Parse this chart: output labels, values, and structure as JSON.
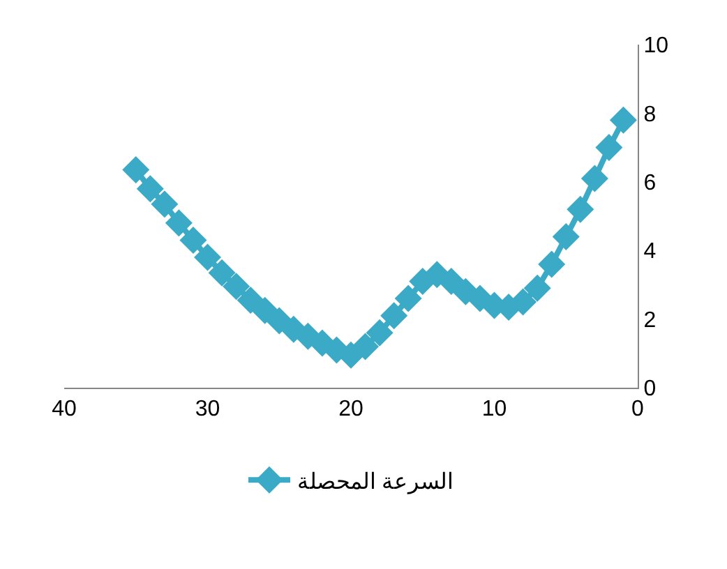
{
  "chart_data": {
    "type": "line",
    "x": [
      35,
      34,
      33,
      32,
      31,
      30,
      29,
      28,
      27,
      26,
      25,
      24,
      23,
      22,
      21,
      20,
      19,
      18,
      17,
      16,
      15,
      14,
      13,
      12,
      11,
      10,
      9,
      8,
      7,
      6,
      5,
      4,
      3,
      2,
      1
    ],
    "series": [
      {
        "name": "السرعة المحصلة",
        "color": "#3aaac6",
        "values": [
          6.35,
          5.8,
          5.35,
          4.8,
          4.3,
          3.8,
          3.35,
          2.95,
          2.55,
          2.25,
          1.95,
          1.7,
          1.5,
          1.3,
          1.1,
          0.95,
          1.2,
          1.6,
          2.1,
          2.6,
          3.1,
          3.3,
          3.1,
          2.8,
          2.6,
          2.4,
          2.35,
          2.5,
          2.9,
          3.6,
          4.4,
          5.2,
          6.1,
          7.0,
          7.8
        ]
      }
    ],
    "xlim": [
      40,
      0
    ],
    "xticks": [
      0,
      10,
      20,
      30,
      40
    ],
    "ylim": [
      0,
      10
    ],
    "yticks": [
      0,
      2,
      4,
      6,
      8,
      10
    ],
    "legend": "bottom",
    "marker": "diamond",
    "line_style": "solid"
  }
}
